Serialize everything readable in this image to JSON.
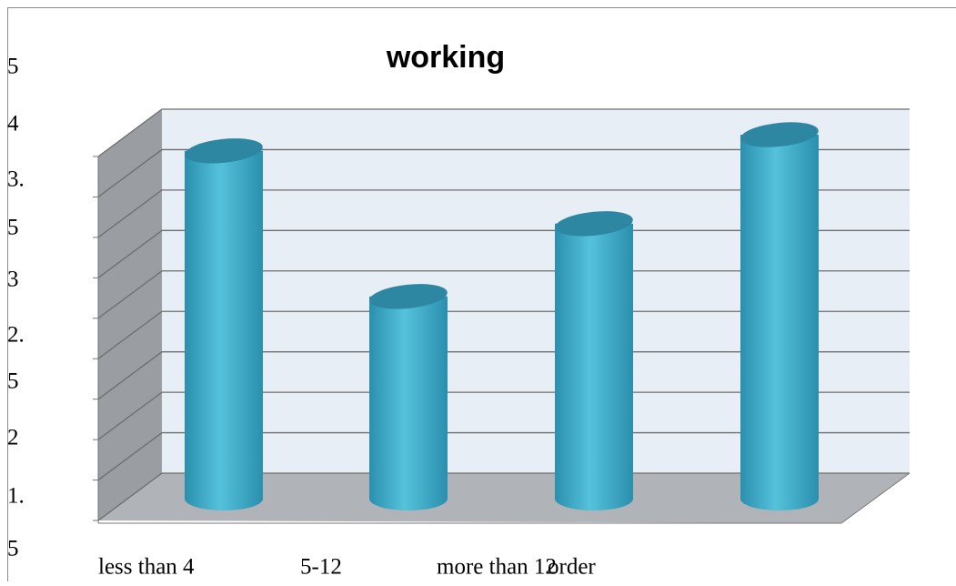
{
  "chart_data": {
    "type": "bar3d",
    "title": "working",
    "categories": [
      "less than 4",
      "5-12",
      "more than 12",
      "order"
    ],
    "values": [
      4.3,
      2.5,
      3.4,
      4.5
    ],
    "color": "#4bb5d0",
    "y_axis_text": [
      "5",
      "4",
      "3.",
      "5",
      "3",
      "2.",
      "5",
      "2",
      "1.",
      "5"
    ],
    "ylim": [
      0,
      4.5
    ],
    "yticks": [
      0,
      0.5,
      1,
      1.5,
      2,
      2.5,
      3,
      3.5,
      4,
      4.5
    ],
    "grid": true
  }
}
